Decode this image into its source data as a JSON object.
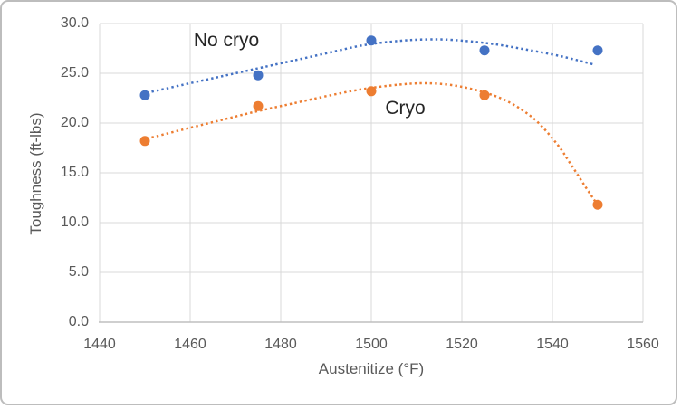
{
  "chart_data": {
    "type": "scatter",
    "title": "",
    "xlabel": "Austenitize (°F)",
    "ylabel": "Toughness (ft-lbs)",
    "xlim": [
      1440,
      1560
    ],
    "ylim": [
      0,
      30
    ],
    "x_ticks": [
      1440,
      1460,
      1480,
      1500,
      1520,
      1540,
      1560
    ],
    "y_ticks": [
      "0.0",
      "5.0",
      "10.0",
      "15.0",
      "20.0",
      "25.0",
      "30.0"
    ],
    "grid": true,
    "legend_position": "inline-annotations",
    "x": [
      1450,
      1475,
      1500,
      1525,
      1550
    ],
    "series": [
      {
        "name": "No cryo",
        "color": "#4472C4",
        "values": [
          22.8,
          24.8,
          28.3,
          27.3,
          27.3
        ],
        "trendline_style": "dotted",
        "trend": [
          [
            1451.5,
            23.15
          ],
          [
            1458,
            23.8
          ],
          [
            1466,
            24.6
          ],
          [
            1474,
            25.4
          ],
          [
            1482,
            26.2
          ],
          [
            1490,
            27.0
          ],
          [
            1498,
            27.8
          ],
          [
            1506,
            28.25
          ],
          [
            1512,
            28.4
          ],
          [
            1518,
            28.35
          ],
          [
            1526,
            28.0
          ],
          [
            1534,
            27.4
          ],
          [
            1542,
            26.7
          ],
          [
            1549,
            25.9
          ]
        ],
        "label_pos": [
          1468,
          28.3
        ]
      },
      {
        "name": "Cryo",
        "color": "#ED7D31",
        "values": [
          18.2,
          21.7,
          23.2,
          22.8,
          11.8
        ],
        "trendline_style": "dotted",
        "trend": [
          [
            1451.5,
            18.55
          ],
          [
            1458,
            19.3
          ],
          [
            1466,
            20.2
          ],
          [
            1474,
            21.1
          ],
          [
            1482,
            21.9
          ],
          [
            1490,
            22.7
          ],
          [
            1498,
            23.4
          ],
          [
            1506,
            23.85
          ],
          [
            1512,
            24.0
          ],
          [
            1518,
            23.8
          ],
          [
            1524,
            23.2
          ],
          [
            1530,
            22.2
          ],
          [
            1536,
            20.4
          ],
          [
            1541,
            17.9
          ],
          [
            1544,
            15.9
          ],
          [
            1547,
            13.8
          ],
          [
            1549.5,
            12.1
          ]
        ],
        "label_pos": [
          1507.5,
          21.5
        ]
      }
    ]
  },
  "colors": {
    "background": "#FFFFFF",
    "gridline": "#D9D9D9",
    "axis_line": "#BFBFBF",
    "tick_text": "#595959",
    "annotation_text": "#262626",
    "frame_border": "#BDBDBD"
  }
}
